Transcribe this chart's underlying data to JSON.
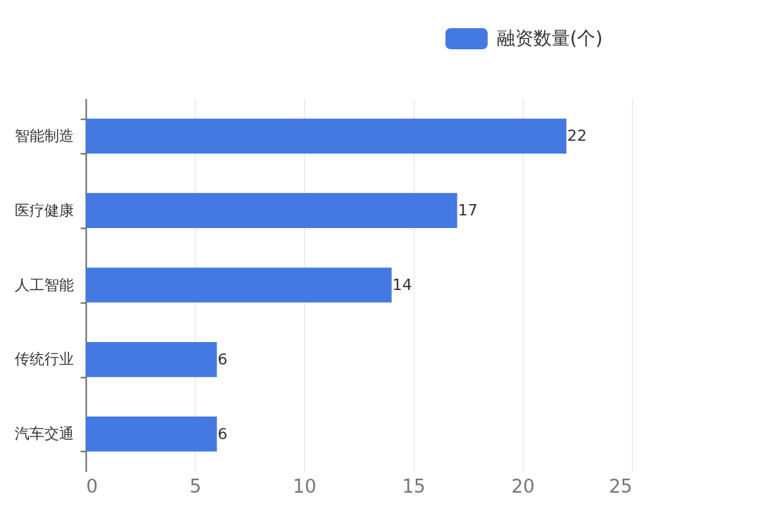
{
  "chart_data": {
    "type": "bar",
    "orientation": "horizontal",
    "categories": [
      "智能制造",
      "医疗健康",
      "人工智能",
      "传统行业",
      "汽车交通"
    ],
    "series": [
      {
        "name": "融资数量(个)",
        "color": "#4479e1",
        "values": [
          22,
          17,
          14,
          6,
          6
        ]
      }
    ],
    "xlim": [
      0,
      25
    ],
    "xticks": [
      0,
      5,
      10,
      15,
      20,
      25
    ],
    "grid": "x",
    "legend": "top right",
    "data_labels": true
  }
}
